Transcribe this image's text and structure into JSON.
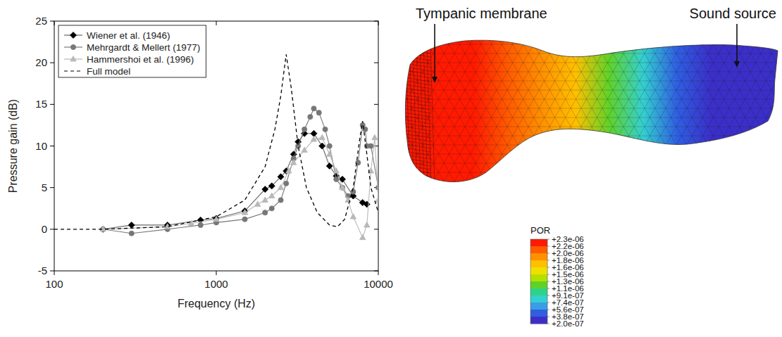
{
  "chart_data": [
    {
      "type": "line",
      "xlabel": "Frequency (Hz)",
      "ylabel": "Pressure gain (dB)",
      "log": "x",
      "grid": false,
      "legend": "upper left",
      "xlim": [
        100,
        10000
      ],
      "xticks": [
        100,
        1000,
        10000
      ],
      "ylim": [
        -5,
        25
      ],
      "yticks": [
        -5,
        0,
        5,
        10,
        15,
        20,
        25
      ],
      "series": [
        {
          "name": "Wiener et al. (1946)",
          "color": "#000000",
          "marker": "diamond",
          "line_style": "solid",
          "x": [
            200,
            300,
            500,
            800,
            1000,
            1500,
            2000,
            2200,
            2500,
            2700,
            3000,
            3200,
            3500,
            4000,
            4500,
            5000,
            5500,
            6000,
            7000,
            8000,
            8500
          ],
          "values": [
            0,
            0.5,
            0.5,
            1.1,
            1.3,
            2.2,
            4.8,
            5.2,
            6.3,
            7,
            9,
            10.5,
            11.5,
            11.5,
            10,
            7.6,
            6.4,
            6,
            4,
            3.2,
            3
          ]
        },
        {
          "name": "Mehrgardt & Mellert (1977)",
          "color": "#777777",
          "marker": "circle",
          "line_style": "solid",
          "x": [
            200,
            300,
            500,
            800,
            1000,
            1500,
            2000,
            2200,
            2500,
            2700,
            3000,
            3200,
            3500,
            3800,
            4000,
            4300,
            4700,
            5000,
            5500,
            6000,
            6500,
            7000,
            7500,
            8000,
            8300,
            8500,
            9000,
            10000
          ],
          "values": [
            0,
            -0.5,
            0,
            0.5,
            0.8,
            1.2,
            2,
            2.5,
            3.5,
            5.5,
            8.5,
            10,
            12,
            13.5,
            14.5,
            14,
            12,
            10,
            6,
            5,
            4,
            4.5,
            8,
            12.5,
            12,
            10,
            10,
            5
          ]
        },
        {
          "name": "Hammershoi et al. (1996)",
          "color": "#b8b8b8",
          "marker": "triangle",
          "line_style": "solid",
          "x": [
            200,
            500,
            700,
            1000,
            1500,
            1800,
            2000,
            2200,
            2500,
            2800,
            3000,
            3500,
            4000,
            4500,
            5000,
            5500,
            6000,
            6500,
            7000,
            8000,
            8500,
            9000,
            9500,
            10000
          ],
          "values": [
            0,
            0.3,
            0.7,
            1.2,
            2,
            3,
            3.5,
            4,
            5,
            7,
            8,
            9.5,
            10.8,
            11,
            9,
            7,
            5,
            3.5,
            1.5,
            -1,
            0.5,
            7,
            11,
            3.5
          ]
        },
        {
          "name": "Full model",
          "color": "#000000",
          "marker": "none",
          "line_style": "dashed",
          "x": [
            100,
            200,
            500,
            1000,
            1500,
            2000,
            2300,
            2500,
            2700,
            2900,
            3200,
            3600,
            4200,
            5000,
            5600,
            6200,
            7000,
            7700,
            8000,
            8500,
            9000,
            10000
          ],
          "values": [
            0,
            0,
            0.3,
            1.5,
            3.5,
            7.5,
            12,
            16,
            21,
            17,
            10,
            5,
            2,
            0.5,
            0.3,
            1.2,
            5,
            11,
            13,
            9,
            5,
            2
          ]
        }
      ]
    },
    {
      "type": "contour",
      "title": "POR",
      "annotations": [
        "Tympanic membrane",
        "Sound source"
      ],
      "values": [
        2.3e-06,
        2.3e-06,
        2.2e-06,
        2.1e-06,
        1.9e-06,
        1.6e-06,
        1.2e-06,
        8e-07,
        4.5e-07,
        2.5e-07,
        2e-07,
        2e-07
      ],
      "clim": [
        2e-07,
        2.3e-06
      ],
      "cticks": [
        {
          "value": 2.3e-06,
          "label": "+2.3e-06"
        },
        {
          "value": 2.2e-06,
          "label": "+2.2e-06"
        },
        {
          "value": 2e-06,
          "label": "+2.0e-06"
        },
        {
          "value": 1.8e-06,
          "label": "+1.8e-06"
        },
        {
          "value": 1.6e-06,
          "label": "+1.6e-06"
        },
        {
          "value": 1.5e-06,
          "label": "+1.5e-06"
        },
        {
          "value": 1.3e-06,
          "label": "+1.3e-06"
        },
        {
          "value": 1.1e-06,
          "label": "+1.1e-06"
        },
        {
          "value": 9.1e-07,
          "label": "+9.1e-07"
        },
        {
          "value": 7.4e-07,
          "label": "+7.4e-07"
        },
        {
          "value": 5.6e-07,
          "label": "+5.6e-07"
        },
        {
          "value": 3.8e-07,
          "label": "+3.8e-07"
        },
        {
          "value": 2e-07,
          "label": "+2.0e-07"
        }
      ],
      "colors": [
        "#ff1a00",
        "#ff5a00",
        "#ff9000",
        "#ffc000",
        "#f0e000",
        "#b4e000",
        "#5fd22a",
        "#2ed38a",
        "#34cfd0",
        "#3a9de6",
        "#2f5fe0",
        "#3b2fc8"
      ]
    }
  ]
}
